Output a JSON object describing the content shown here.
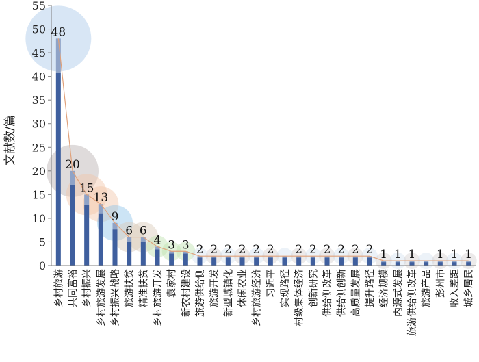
{
  "chart_data": {
    "type": "bar",
    "ylabel": "文献数/篇",
    "ylim": [
      0,
      55
    ],
    "yticks": [
      0,
      5,
      10,
      15,
      20,
      25,
      30,
      35,
      40,
      45,
      50,
      55
    ],
    "grid": false,
    "categories": [
      "乡村旅游",
      "共同富裕",
      "乡村振兴",
      "乡村旅游发展",
      "乡村振兴战略",
      "旅游扶贫",
      "精准扶贫",
      "乡村旅游开发",
      "袁家村",
      "新农村建设",
      "旅游供给侧",
      "旅游开发",
      "新型城镇化",
      "休闲农业",
      "乡村旅游经济",
      "习近平",
      "实现路径",
      "村级集体经济",
      "创新研究",
      "供给侧改革",
      "供给侧创新",
      "高质量发展",
      "提升路径",
      "经济规模",
      "内源式发展",
      "旅游供给侧改革",
      "旅游产品",
      "彭州市",
      "收入差距",
      "城乡居民"
    ],
    "values": [
      48,
      20,
      15,
      13,
      9,
      6,
      6,
      4,
      3,
      3,
      2,
      2,
      2,
      2,
      2,
      2,
      2,
      2,
      2,
      2,
      2,
      2,
      2,
      1,
      1,
      1,
      1,
      1,
      1,
      1
    ],
    "data_labels": [
      "48",
      "20",
      "15",
      "13",
      "9",
      "6",
      "6",
      "4",
      "3",
      "3",
      "2",
      "2",
      "2",
      "2",
      "2",
      "2",
      "",
      "2",
      "2",
      "2",
      "2",
      "2",
      "2",
      "1",
      "1",
      "1",
      "",
      "1",
      "1",
      "1"
    ],
    "series_line": "trend line connecting bar tops",
    "colors": {
      "bar_main": "#3f5f9e",
      "bar_top": "#8fa3c7",
      "line": "#e0a17a",
      "bubbles": [
        "#a9c8e8",
        "#b8b0b0",
        "#f2c6a8",
        "#8ec4e8",
        "#d9c9b8",
        "#bfe3b0"
      ]
    }
  }
}
